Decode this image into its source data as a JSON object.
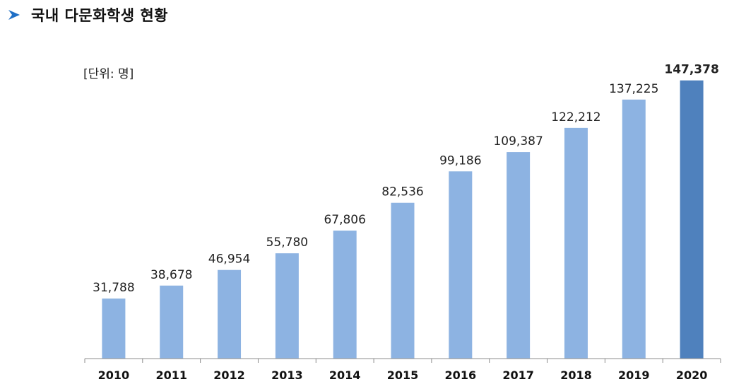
{
  "header": {
    "title": "국내 다문화학생 현황",
    "icon": "chevron-right-arrow-icon"
  },
  "chart_data": {
    "type": "bar",
    "unit_label": "[단위: 명]",
    "categories": [
      "2010",
      "2011",
      "2012",
      "2013",
      "2014",
      "2015",
      "2016",
      "2017",
      "2018",
      "2019",
      "2020"
    ],
    "values": [
      31788,
      38678,
      46954,
      55780,
      67806,
      82536,
      99186,
      109387,
      122212,
      137225,
      147378
    ],
    "value_labels": [
      "31,788",
      "38,678",
      "46,954",
      "55,780",
      "67,806",
      "82,536",
      "99,186",
      "109,387",
      "122,212",
      "137,225",
      "147,378"
    ],
    "ylim": [
      0,
      160000
    ],
    "grid": false,
    "legend": "none",
    "colors": {
      "bar": "#8DB3E2",
      "highlight": "#4F81BD",
      "arrow": "#1F6FC6"
    },
    "highlight_index": 10
  }
}
